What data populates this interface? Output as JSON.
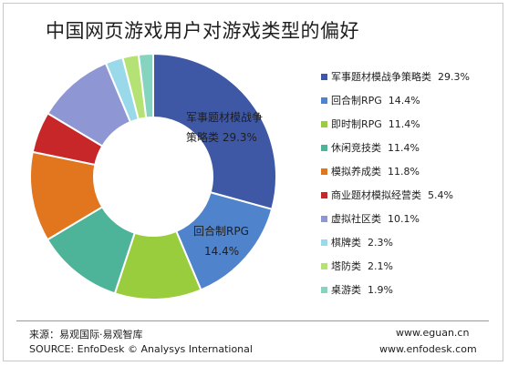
{
  "chart_data": {
    "type": "pie",
    "title": "中国网页游戏用户对游戏类型的偏好",
    "donut": true,
    "legend_position": "right",
    "categories": [
      "军事题材模战争策略类",
      "回合制RPG",
      "即时制RPG",
      "休闲竞技类",
      "模拟养成类",
      "商业题材模拟经营类",
      "虚拟社区类",
      "棋牌类",
      "塔防类",
      "桌游类"
    ],
    "values": [
      29.3,
      14.4,
      11.4,
      11.4,
      11.8,
      5.4,
      10.1,
      2.3,
      2.1,
      1.9
    ],
    "value_labels": [
      "29.3%",
      "14.4%",
      "11.4%",
      "11.4%",
      "11.8%",
      "5.4%",
      "10.1%",
      "2.3%",
      "2.1%",
      "1.9%"
    ],
    "colors": [
      "#3f58a6",
      "#4f84cc",
      "#9acd3d",
      "#4db399",
      "#e2761f",
      "#c8272a",
      "#8e97d3",
      "#99d9ea",
      "#b5e275",
      "#86d4c0"
    ],
    "callouts": [
      {
        "line1": "军事题材模战争",
        "line2": "策略类  29.3%"
      },
      {
        "line1": "回合制RPG",
        "line2": "14.4%"
      }
    ]
  },
  "footer": {
    "source_cn": "来源：易观国际·易观智库",
    "source_en": "SOURCE: EnfoDesk © Analysys International",
    "url1": "www.eguan.cn",
    "url2": "www.enfodesk.com"
  }
}
